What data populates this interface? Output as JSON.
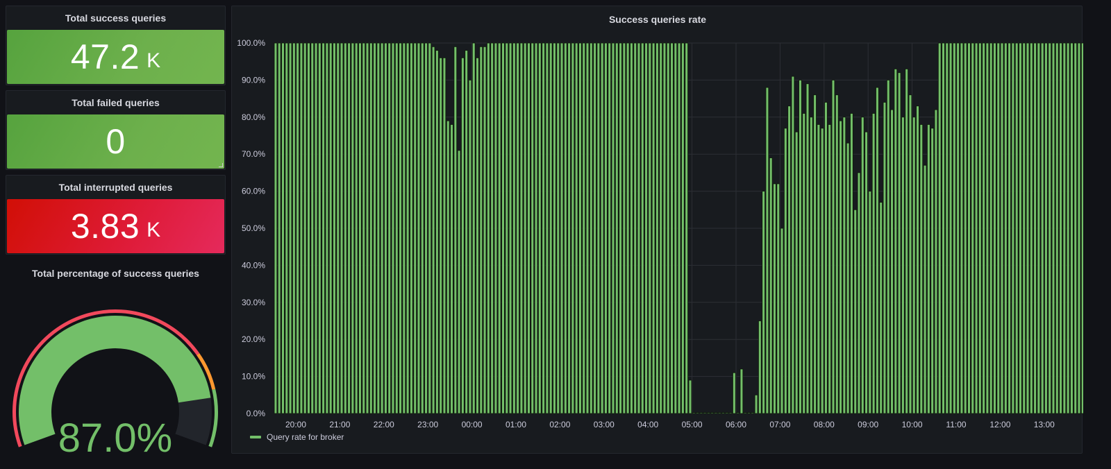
{
  "stats": [
    {
      "title": "Total success queries",
      "value": "47.2",
      "unit": "K",
      "color": "green"
    },
    {
      "title": "Total failed queries",
      "value": "0",
      "unit": "",
      "color": "green"
    },
    {
      "title": "Total interrupted queries",
      "value": "3.83",
      "unit": "K",
      "color": "red"
    }
  ],
  "gauge": {
    "title": "Total percentage of success queries",
    "value": 87.0,
    "display": "87.0%",
    "min": 0,
    "max": 100,
    "thresholds": [
      {
        "from": 0,
        "to": 75,
        "color": "#f2495c"
      },
      {
        "from": 75,
        "to": 85,
        "color": "#ff9830"
      },
      {
        "from": 85,
        "to": 100,
        "color": "#73bf69"
      }
    ],
    "value_color": "#73bf69"
  },
  "colors": {
    "background": "#111217",
    "panel": "#181b1f",
    "bar_fill": "#73bf69",
    "bar_stroke": "#0d1a09",
    "grid": "#2c2f35",
    "stat_green": "#63ab48",
    "stat_red": "#dc1530"
  },
  "chart_data": {
    "type": "bar",
    "title": "Success queries rate",
    "xlabel": "",
    "ylabel": "",
    "ylim": [
      0,
      100
    ],
    "y_ticks": [
      "0.0%",
      "10.0%",
      "20.0%",
      "30.0%",
      "40.0%",
      "50.0%",
      "60.0%",
      "70.0%",
      "80.0%",
      "90.0%",
      "100.0%"
    ],
    "x_ticks": [
      "20:00",
      "21:00",
      "22:00",
      "23:00",
      "00:00",
      "01:00",
      "02:00",
      "03:00",
      "04:00",
      "05:00",
      "06:00",
      "07:00",
      "08:00",
      "09:00",
      "10:00",
      "11:00",
      "12:00",
      "13:00"
    ],
    "grid": true,
    "legend_position": "bottom-left",
    "series": [
      {
        "name": "Query rate for broker",
        "color": "#73bf69",
        "interval_minutes": 5,
        "start": "19:30",
        "values": [
          100,
          100,
          100,
          100,
          100,
          100,
          100,
          100,
          100,
          100,
          100,
          100,
          100,
          100,
          100,
          100,
          100,
          100,
          100,
          100,
          100,
          100,
          100,
          100,
          100,
          100,
          100,
          100,
          100,
          100,
          100,
          100,
          100,
          100,
          100,
          100,
          100,
          100,
          100,
          100,
          100,
          100,
          100,
          99,
          98,
          96,
          96,
          79,
          78,
          99,
          71,
          96,
          98,
          90,
          100,
          96,
          99,
          99,
          100,
          100,
          100,
          100,
          100,
          100,
          100,
          100,
          100,
          100,
          100,
          100,
          100,
          100,
          100,
          100,
          100,
          100,
          100,
          100,
          100,
          100,
          100,
          100,
          100,
          100,
          100,
          100,
          100,
          100,
          100,
          100,
          100,
          100,
          100,
          100,
          100,
          100,
          100,
          100,
          100,
          100,
          100,
          100,
          100,
          100,
          100,
          100,
          100,
          100,
          100,
          100,
          100,
          100,
          100,
          9,
          0,
          0,
          0,
          0,
          0,
          0,
          0,
          0,
          0,
          0,
          0,
          11,
          0,
          12,
          0,
          0,
          0,
          5,
          25,
          60,
          88,
          69,
          62,
          62,
          50,
          77,
          83,
          91,
          76,
          90,
          81,
          89,
          80,
          86,
          78,
          77,
          84,
          78,
          90,
          86,
          79,
          80,
          73,
          81,
          55,
          65,
          80,
          76,
          60,
          81,
          88,
          57,
          84,
          90,
          82,
          93,
          92,
          80,
          93,
          86,
          80,
          83,
          78,
          67,
          78,
          77,
          82,
          100,
          100,
          100,
          100,
          100,
          100,
          100,
          100,
          100,
          100,
          100,
          100,
          100,
          100,
          100,
          100,
          100,
          100,
          100,
          100,
          100,
          100,
          100,
          100,
          100,
          100,
          100,
          100,
          100,
          100,
          100,
          100,
          100,
          100,
          100,
          100,
          100,
          100,
          100,
          100,
          100,
          100,
          100,
          100,
          100,
          100,
          100,
          100,
          100,
          100,
          100,
          100
        ]
      }
    ]
  },
  "legend": {
    "label": "Query rate for broker"
  }
}
